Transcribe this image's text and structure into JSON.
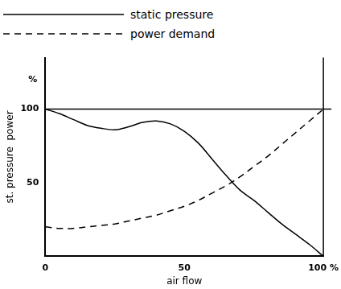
{
  "chart_data": {
    "type": "line",
    "x_label": "air flow",
    "y_label": "st. pressure  power",
    "annotations": [
      "%"
    ],
    "legend": "top",
    "grid": false,
    "xlim": [
      0,
      100
    ],
    "xticks": [
      0,
      50,
      {
        "value": 100,
        "label": "100 %"
      }
    ],
    "ylim": [
      0,
      135
    ],
    "yticks": [
      50,
      100
    ],
    "x": [
      0,
      5,
      10,
      15,
      20,
      25,
      30,
      35,
      40,
      45,
      50,
      55,
      60,
      65,
      70,
      75,
      80,
      85,
      90,
      95,
      100
    ],
    "series": [
      {
        "name": "static pressure",
        "color": "#000000",
        "line_style": "solid",
        "values": [
          100,
          97,
          93,
          89,
          87,
          86,
          88,
          91,
          92,
          90,
          85,
          77,
          66,
          55,
          45,
          38,
          30,
          22,
          15,
          8,
          0
        ]
      },
      {
        "name": "power demand",
        "color": "#000000",
        "line_style": "dashed",
        "values": [
          20,
          19,
          19,
          20,
          21,
          22,
          24,
          26,
          28,
          31,
          34,
          38,
          43,
          48,
          54,
          61,
          68,
          76,
          84,
          92,
          100
        ]
      }
    ]
  }
}
